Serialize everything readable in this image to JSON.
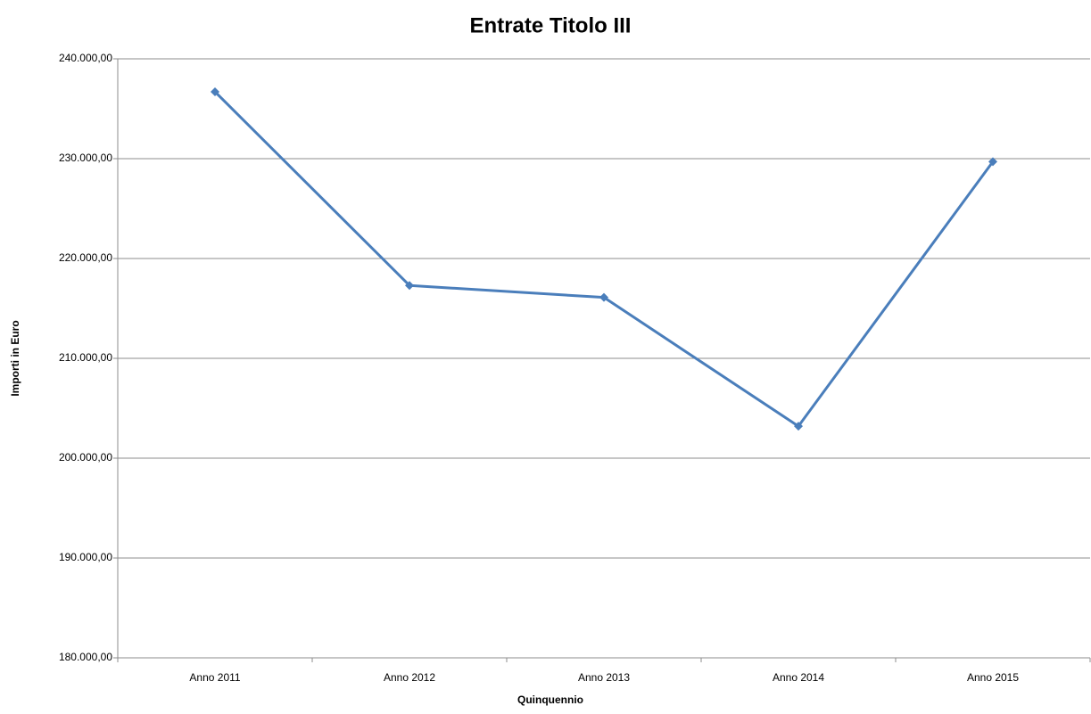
{
  "chart_data": {
    "type": "line",
    "title": "Entrate Titolo III",
    "x_label": "Quinquennio",
    "y_label": "Importi in Euro",
    "categories": [
      "Anno 2011",
      "Anno 2012",
      "Anno 2013",
      "Anno 2014",
      "Anno 2015"
    ],
    "series": [
      {
        "name": "Entrate Titolo III",
        "color": "#4a7ebb",
        "values": [
          236700,
          217300,
          216100,
          203200,
          229700
        ]
      }
    ],
    "ylim": [
      180000,
      240000
    ],
    "yticks": [
      {
        "value": 180000,
        "label": "180.000,00"
      },
      {
        "value": 190000,
        "label": "190.000,00"
      },
      {
        "value": 200000,
        "label": "200.000,00"
      },
      {
        "value": 210000,
        "label": "210.000,00"
      },
      {
        "value": 220000,
        "label": "220.000,00"
      },
      {
        "value": 230000,
        "label": "230.000,00"
      },
      {
        "value": 240000,
        "label": "240.000,00"
      }
    ],
    "grid": true
  }
}
